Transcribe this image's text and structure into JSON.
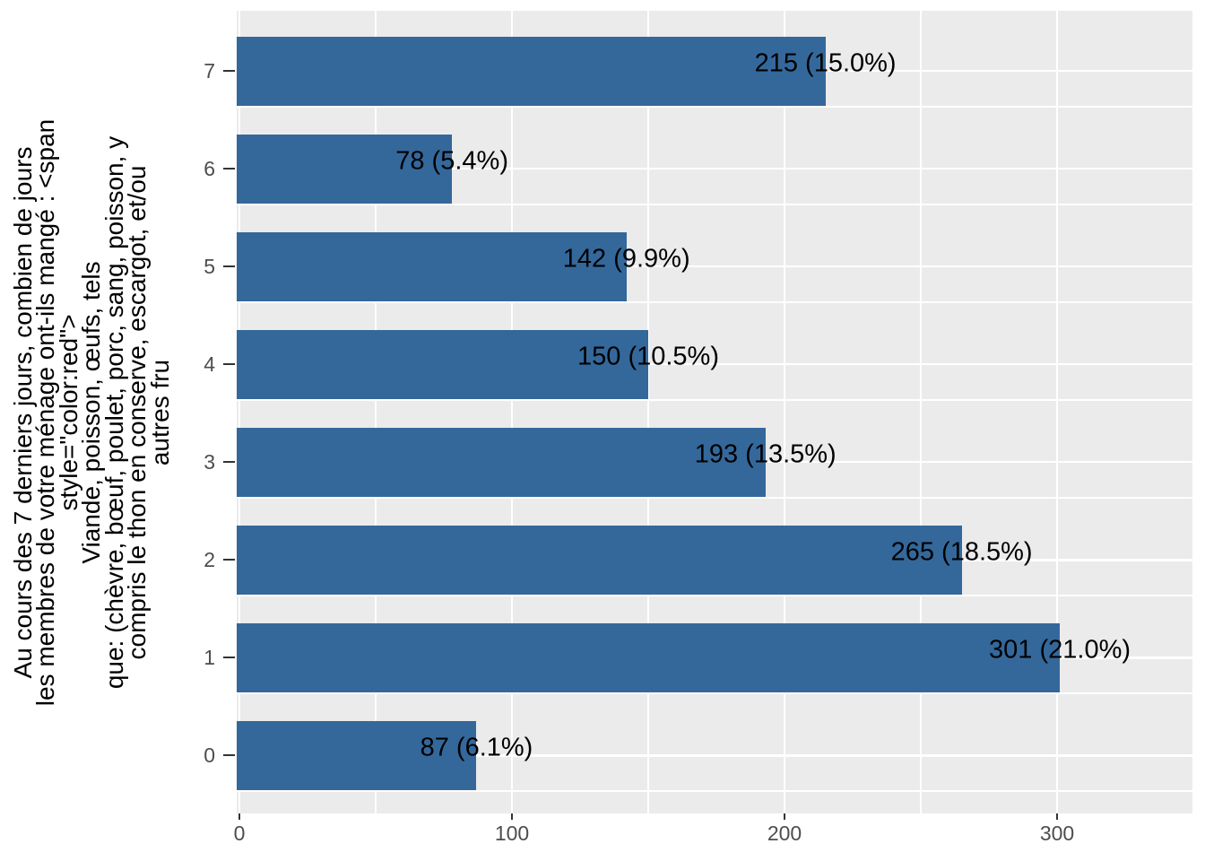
{
  "chart_data": {
    "type": "bar",
    "orientation": "horizontal",
    "title": "",
    "xlabel": "",
    "ylabel_lines": [
      "Au cours des 7 derniers jours, combien de jours",
      "les membres de votre ménage ont-ils mangé : <span",
      "style=\"color:red\">",
      "Viande, poisson, œufs, tels",
      "que: (chèvre, bœuf, poulet, porc, sang, poisson, y",
      "compris le thon en conserve, escargot, et/ou",
      "autres fru"
    ],
    "categories": [
      "7",
      "6",
      "5",
      "4",
      "3",
      "2",
      "1",
      "0"
    ],
    "values": [
      215,
      78,
      142,
      150,
      193,
      265,
      301,
      87
    ],
    "percents": [
      15.0,
      5.4,
      9.9,
      10.5,
      13.5,
      18.5,
      21.0,
      6.1
    ],
    "bar_labels": [
      "215 (15.0%)",
      "78 (5.4%)",
      "142 (9.9%)",
      "150 (10.5%)",
      "193 (13.5%)",
      "265 (18.5%)",
      "301 (21.0%)",
      "87 (6.1%)"
    ],
    "x_ticks": [
      0,
      100,
      200,
      300
    ],
    "x_minor_ticks": [
      50,
      150,
      250,
      350
    ],
    "xlim": [
      0,
      350
    ],
    "grid": true,
    "legend_position": "none",
    "colors": {
      "bar_fill": "#34689B",
      "panel_background": "#EBEBEB",
      "gridline": "#FFFFFF",
      "tick_label": "#4D4D4D",
      "tick_mark": "#333333",
      "bar_label_text": "#000000",
      "axis_title_text": "#000000",
      "figure_background": "#FFFFFF"
    }
  }
}
